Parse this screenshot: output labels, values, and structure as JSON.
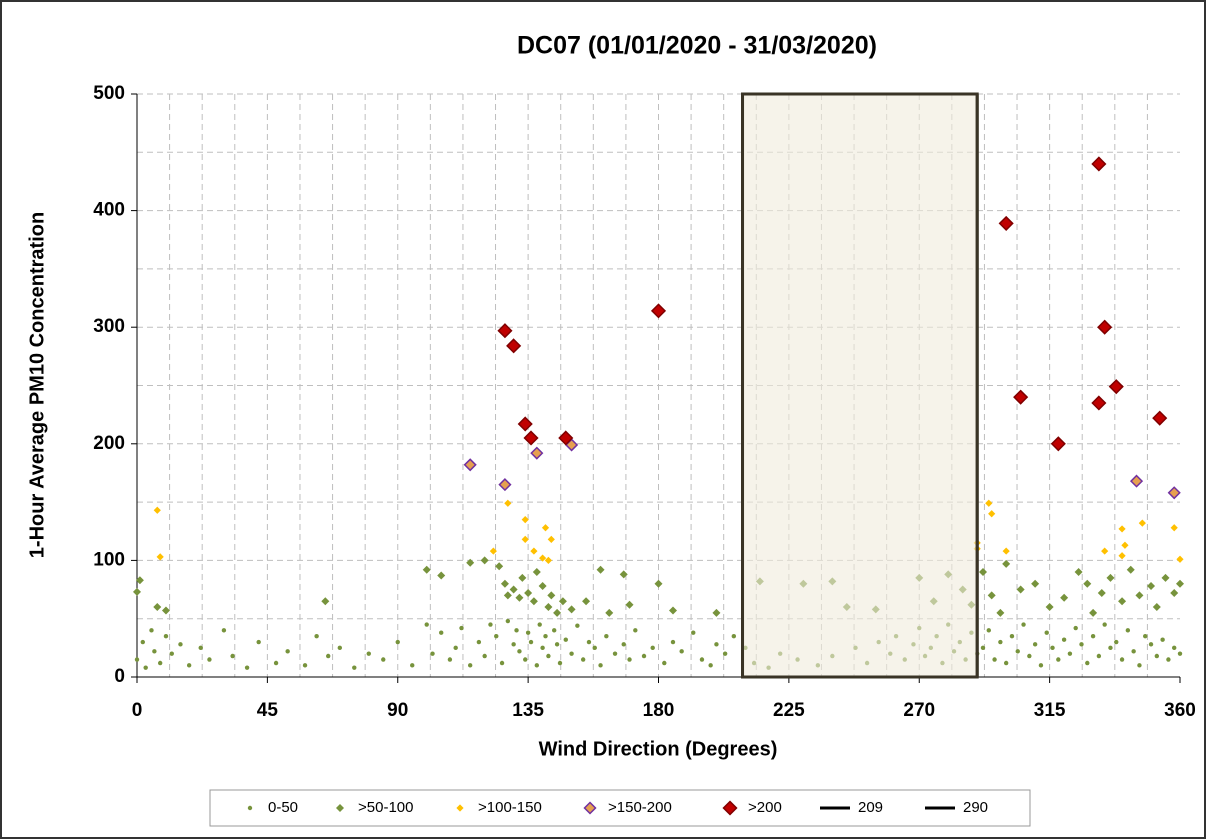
{
  "chart_data": {
    "type": "scatter",
    "title": "DC07 (01/01/2020 - 31/03/2020)",
    "x_label": "Wind Direction (Degrees)",
    "y_label": "1-Hour Average PM10 Concentration",
    "xlim": [
      0,
      360
    ],
    "ylim": [
      0,
      500
    ],
    "xticks": [
      0,
      45,
      90,
      135,
      180,
      225,
      270,
      315,
      360
    ],
    "yticks": [
      0,
      100,
      200,
      300,
      400,
      500
    ],
    "grid": true,
    "xgrid_step": 11.25,
    "ygrid_step": 50,
    "legend": "bottom",
    "series": [
      {
        "name": "0-50",
        "color": "#77933c",
        "marker": "dot",
        "x": [
          0,
          2,
          3,
          5,
          6,
          8,
          10,
          12,
          15,
          18,
          22,
          25,
          30,
          33,
          38,
          42,
          48,
          52,
          58,
          62,
          66,
          70,
          75,
          80,
          85,
          90,
          95,
          100,
          102,
          105,
          108,
          110,
          112,
          115,
          118,
          120,
          122,
          124,
          126,
          128,
          130,
          131,
          132,
          134,
          135,
          136,
          138,
          139,
          140,
          141,
          142,
          144,
          145,
          146,
          148,
          150,
          152,
          154,
          156,
          158,
          160,
          162,
          165,
          168,
          170,
          172,
          175,
          178,
          182,
          185,
          188,
          192,
          195,
          198,
          200,
          203,
          206,
          210,
          213,
          218,
          222,
          228,
          235,
          240,
          248,
          252,
          256,
          260,
          262,
          265,
          268,
          270,
          272,
          274,
          276,
          278,
          280,
          282,
          284,
          286,
          288,
          290,
          292,
          294,
          296,
          298,
          300,
          302,
          304,
          306,
          308,
          310,
          312,
          314,
          316,
          318,
          320,
          322,
          324,
          326,
          328,
          330,
          332,
          334,
          336,
          338,
          340,
          342,
          344,
          346,
          348,
          350,
          352,
          354,
          356,
          358,
          360
        ],
        "y": [
          15,
          30,
          8,
          40,
          22,
          12,
          35,
          20,
          28,
          10,
          25,
          15,
          40,
          18,
          8,
          30,
          12,
          22,
          10,
          35,
          18,
          25,
          8,
          20,
          15,
          30,
          10,
          45,
          20,
          38,
          15,
          25,
          42,
          10,
          30,
          18,
          45,
          35,
          12,
          48,
          28,
          40,
          22,
          15,
          38,
          30,
          10,
          45,
          25,
          35,
          18,
          40,
          28,
          12,
          32,
          20,
          44,
          15,
          30,
          25,
          10,
          35,
          20,
          28,
          15,
          40,
          18,
          25,
          12,
          30,
          22,
          38,
          15,
          10,
          28,
          20,
          35,
          25,
          12,
          8,
          20,
          15,
          10,
          18,
          25,
          12,
          30,
          20,
          35,
          15,
          28,
          42,
          18,
          25,
          35,
          12,
          45,
          22,
          30,
          15,
          38,
          20,
          25,
          40,
          15,
          30,
          12,
          35,
          22,
          45,
          18,
          28,
          10,
          38,
          25,
          15,
          32,
          20,
          42,
          28,
          12,
          35,
          18,
          45,
          25,
          30,
          15,
          40,
          22,
          10,
          35,
          28,
          18,
          32,
          15,
          25,
          20
        ]
      },
      {
        "name": ">50-100",
        "color": "#77933c",
        "marker": "diamond",
        "x": [
          0,
          1,
          7,
          10,
          65,
          100,
          105,
          115,
          120,
          125,
          127,
          128,
          130,
          132,
          133,
          135,
          137,
          138,
          140,
          142,
          143,
          145,
          147,
          150,
          155,
          160,
          163,
          168,
          170,
          180,
          185,
          200,
          215,
          230,
          240,
          245,
          255,
          270,
          275,
          280,
          285,
          288,
          292,
          295,
          298,
          300,
          305,
          310,
          315,
          320,
          325,
          328,
          330,
          333,
          336,
          340,
          343,
          346,
          350,
          352,
          355,
          358,
          360
        ],
        "y": [
          73,
          83,
          60,
          57,
          65,
          92,
          87,
          98,
          100,
          95,
          80,
          70,
          75,
          68,
          85,
          72,
          65,
          90,
          78,
          60,
          70,
          55,
          65,
          58,
          65,
          92,
          55,
          88,
          62,
          80,
          57,
          55,
          82,
          80,
          82,
          60,
          58,
          85,
          65,
          88,
          75,
          62,
          90,
          70,
          55,
          97,
          75,
          80,
          60,
          68,
          90,
          80,
          55,
          72,
          85,
          65,
          92,
          70,
          78,
          60,
          85,
          72,
          80
        ]
      },
      {
        "name": ">100-150",
        "color": "#ffc000",
        "marker": "diamond",
        "x": [
          7,
          8,
          123,
          128,
          134,
          134,
          137,
          140,
          141,
          142,
          143,
          290,
          290,
          294,
          295,
          300,
          334,
          340,
          340,
          341,
          347,
          358,
          360
        ],
        "y": [
          143,
          103,
          108,
          149,
          135,
          118,
          108,
          102,
          128,
          100,
          118,
          115,
          110,
          149,
          140,
          108,
          108,
          127,
          104,
          113,
          132,
          128,
          101
        ]
      },
      {
        "name": ">150-200",
        "color": "#e6a050",
        "edge": "#7030a0",
        "marker": "diamond",
        "x": [
          115,
          127,
          138,
          150,
          345,
          358
        ],
        "y": [
          182,
          165,
          192,
          199,
          168,
          158
        ]
      },
      {
        "name": ">200",
        "color": "#c00000",
        "edge": "#7f0000",
        "marker": "diamond",
        "x": [
          127,
          130,
          134,
          136,
          148,
          180,
          300,
          305,
          318,
          332,
          334,
          338,
          332,
          353
        ],
        "y": [
          297,
          284,
          217,
          205,
          205,
          314,
          389,
          240,
          200,
          440,
          300,
          249,
          235,
          222
        ]
      },
      {
        "name": "209",
        "color": "#000000",
        "marker": "line",
        "x": [
          209,
          209
        ],
        "y": [
          0,
          500
        ]
      },
      {
        "name": "290",
        "color": "#000000",
        "marker": "line",
        "x": [
          290,
          290
        ],
        "y": [
          0,
          500
        ]
      }
    ]
  }
}
